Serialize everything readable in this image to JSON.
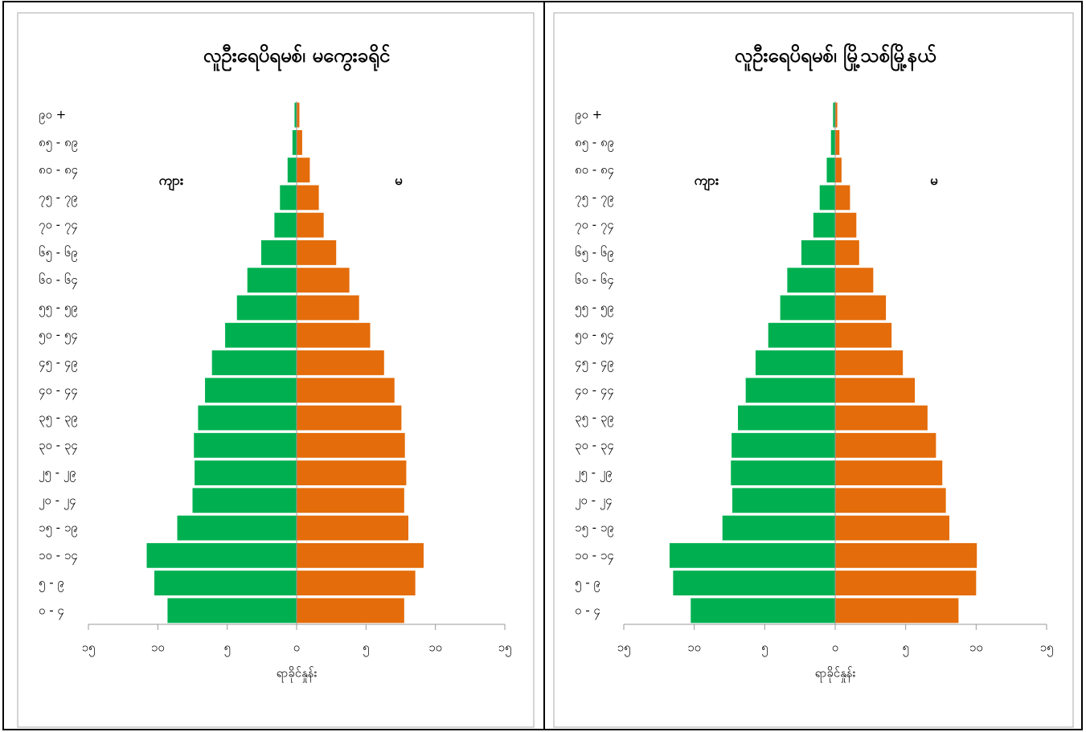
{
  "chart_data": [
    {
      "type": "pyramid",
      "title": "လူဦးရေပိရမစ်၊ မကွေးခရိုင်",
      "x_label": "ရာခိုင်နှုန်း",
      "categories": [
        "၀ - ၄",
        "၅ - ၉",
        "၁၀ - ၁၄",
        "၁၅ - ၁၉",
        "၂၀ - ၂၄",
        "၂၅ - ၂၉",
        "၃၀ - ၃၄",
        "၃၅ - ၃၉",
        "၄၀ - ၄၄",
        "၄၅ - ၄၉",
        "၅၀ - ၅၄",
        "၅၅ - ၅၉",
        "၆၀ - ၆၄",
        "၆၅ - ၆၉",
        "၇၀ - ၇၄",
        "၇၅ - ၇၉",
        "၈၀ - ၈၄",
        "၈၅ - ၈၉",
        "၉၀ +"
      ],
      "series": [
        {
          "name": "ကျား",
          "color": "#00b050",
          "values": [
            -9.3,
            -10.25,
            -10.8,
            -8.6,
            -7.5,
            -7.35,
            -7.4,
            -7.1,
            -6.6,
            -6.1,
            -5.15,
            -4.3,
            -3.55,
            -2.55,
            -1.6,
            -1.2,
            -0.65,
            -0.3,
            -0.15
          ]
        },
        {
          "name": "မ",
          "color": "#e46c0a",
          "values": [
            7.75,
            8.55,
            9.15,
            8.05,
            7.75,
            7.9,
            7.8,
            7.55,
            7.05,
            6.3,
            5.3,
            4.5,
            3.8,
            2.85,
            1.95,
            1.6,
            0.95,
            0.4,
            0.2
          ]
        }
      ],
      "xlim": [
        -15,
        15
      ],
      "xticks": [
        {
          "value": -15,
          "label": "၁၅"
        },
        {
          "value": -10,
          "label": "၁၀"
        },
        {
          "value": -5,
          "label": "၅"
        },
        {
          "value": 0,
          "label": "၀"
        },
        {
          "value": 5,
          "label": "၅"
        },
        {
          "value": 10,
          "label": "၁၀"
        },
        {
          "value": 15,
          "label": "၁၅"
        }
      ]
    },
    {
      "type": "pyramid",
      "title": "လူဦးရေပိရမစ်၊ မြို့သစ်မြို့နယ်",
      "x_label": "ရာခိုင်နှုန်း",
      "categories": [
        "၀ - ၄",
        "၅ - ၉",
        "၁၀ - ၁၄",
        "၁၅ - ၁၉",
        "၂၀ - ၂၄",
        "၂၅ - ၂၉",
        "၃၀ - ၃၄",
        "၃၅ - ၃၉",
        "၄၀ - ၄၄",
        "၄၅ - ၄၉",
        "၅၀ - ၅၄",
        "၅၅ - ၅၉",
        "၆၀ - ၆၄",
        "၆၅ - ၆၉",
        "၇၀ - ၇၄",
        "၇၅ - ၇၉",
        "၈၀ - ၈၄",
        "၈၅ - ၈၉",
        "၉၀ +"
      ],
      "series": [
        {
          "name": "ကျား",
          "color": "#00b050",
          "values": [
            -10.25,
            -11.5,
            -11.75,
            -8.0,
            -7.3,
            -7.4,
            -7.35,
            -6.9,
            -6.35,
            -5.65,
            -4.75,
            -3.9,
            -3.4,
            -2.4,
            -1.55,
            -1.1,
            -0.6,
            -0.3,
            -0.15
          ]
        },
        {
          "name": "မ",
          "color": "#e46c0a",
          "values": [
            8.75,
            10.0,
            10.05,
            8.1,
            7.85,
            7.6,
            7.15,
            6.55,
            5.65,
            4.8,
            4.0,
            3.6,
            2.7,
            1.7,
            1.5,
            1.05,
            0.45,
            0.3,
            0.15
          ]
        }
      ],
      "xlim": [
        -15,
        15
      ],
      "xticks": [
        {
          "value": -15,
          "label": "၁၅"
        },
        {
          "value": -10,
          "label": "၁၀"
        },
        {
          "value": -5,
          "label": "၅"
        },
        {
          "value": 0,
          "label": "၀"
        },
        {
          "value": 5,
          "label": "၅"
        },
        {
          "value": 10,
          "label": "၁၀"
        },
        {
          "value": 15,
          "label": "၁၅"
        }
      ]
    }
  ]
}
